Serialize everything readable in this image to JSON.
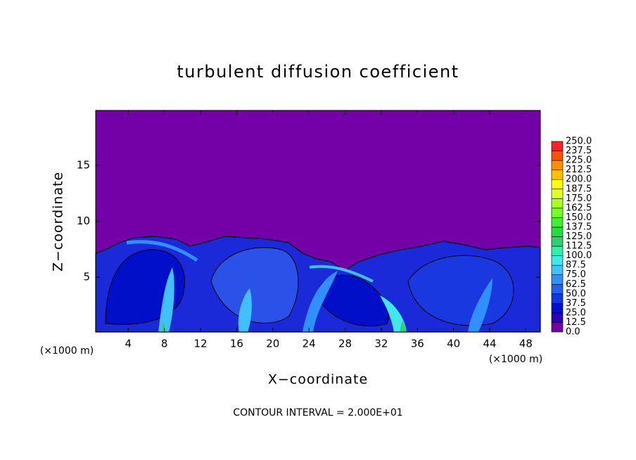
{
  "chart_data": {
    "type": "contour",
    "title": "turbulent diffusion coefficient",
    "x_label": "X−coordinate",
    "y_label": "Z−coordinate",
    "x_unit_label": "(×1000 m)",
    "footer": "CONTOUR INTERVAL = 2.000E+01",
    "xlim": [
      0.4,
      49.6
    ],
    "ylim": [
      0.1,
      19.9
    ],
    "xticks": [
      4,
      8,
      12,
      16,
      20,
      24,
      28,
      32,
      36,
      40,
      44,
      48
    ],
    "yticks": [
      5,
      10,
      15
    ],
    "colorbar": {
      "levels": [
        {
          "value": 0,
          "label": "0.0"
        },
        {
          "value": 12.5,
          "label": "12.5"
        },
        {
          "value": 25,
          "label": "25.0"
        },
        {
          "value": 37.5,
          "label": "37.5"
        },
        {
          "value": 50,
          "label": "50.0"
        },
        {
          "value": 62.5,
          "label": "62.5"
        },
        {
          "value": 75,
          "label": "75.0"
        },
        {
          "value": 87.5,
          "label": "87.5"
        },
        {
          "value": 100,
          "label": "100.0"
        },
        {
          "value": 112.5,
          "label": "112.5"
        },
        {
          "value": 125,
          "label": "125.0"
        },
        {
          "value": 137.5,
          "label": "137.5"
        },
        {
          "value": 150,
          "label": "150.0"
        },
        {
          "value": 162.5,
          "label": "162.5"
        },
        {
          "value": 175,
          "label": "175.0"
        },
        {
          "value": 187.5,
          "label": "187.5"
        },
        {
          "value": 200,
          "label": "200.0"
        },
        {
          "value": 212.5,
          "label": "212.5"
        },
        {
          "value": 225,
          "label": "225.0"
        },
        {
          "value": 237.5,
          "label": "237.5"
        },
        {
          "value": 250,
          "label": "250.0"
        }
      ],
      "colors": [
        "#7400a8",
        "#2a00b8",
        "#0010d0",
        "#1038e0",
        "#2060f0",
        "#3090ff",
        "#40c0ff",
        "#40e8e8",
        "#30f0b0",
        "#30d070",
        "#20e040",
        "#40f030",
        "#70ff20",
        "#a8ff20",
        "#e0ff20",
        "#ffff00",
        "#ffc000",
        "#ff9000",
        "#ff5000",
        "#ff2020",
        "#ff8080"
      ]
    }
  }
}
